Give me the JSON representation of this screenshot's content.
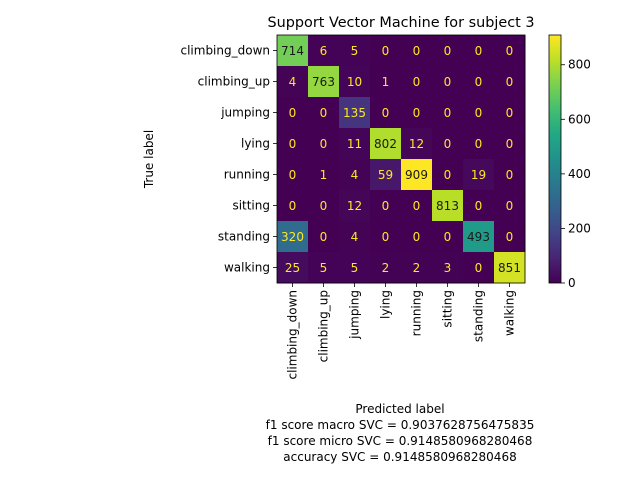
{
  "chart_data": {
    "type": "heatmap",
    "title": "Support Vector Machine for subject 3",
    "xlabel": "Predicted label",
    "ylabel": "True label",
    "x_categories": [
      "climbing_down",
      "climbing_up",
      "jumping",
      "lying",
      "running",
      "sitting",
      "standing",
      "walking"
    ],
    "y_categories": [
      "climbing_down",
      "climbing_up",
      "jumping",
      "lying",
      "running",
      "sitting",
      "standing",
      "walking"
    ],
    "matrix": [
      [
        714,
        6,
        5,
        0,
        0,
        0,
        0,
        0
      ],
      [
        4,
        763,
        10,
        1,
        0,
        0,
        0,
        0
      ],
      [
        0,
        0,
        135,
        0,
        0,
        0,
        0,
        0
      ],
      [
        0,
        0,
        11,
        802,
        12,
        0,
        0,
        0
      ],
      [
        0,
        1,
        4,
        59,
        909,
        0,
        19,
        0
      ],
      [
        0,
        0,
        12,
        0,
        0,
        813,
        0,
        0
      ],
      [
        320,
        0,
        4,
        0,
        0,
        0,
        493,
        0
      ],
      [
        25,
        5,
        5,
        2,
        2,
        3,
        0,
        851
      ]
    ],
    "colormap": "viridis",
    "colorbar": {
      "range": [
        0,
        909
      ],
      "ticks": [
        0,
        200,
        400,
        600,
        800
      ]
    },
    "footer_lines": [
      "f1 score macro SVC = 0.9037628756475835",
      "f1 score micro SVC = 0.9148580968280468",
      "accuracy SVC = 0.9148580968280468"
    ]
  }
}
